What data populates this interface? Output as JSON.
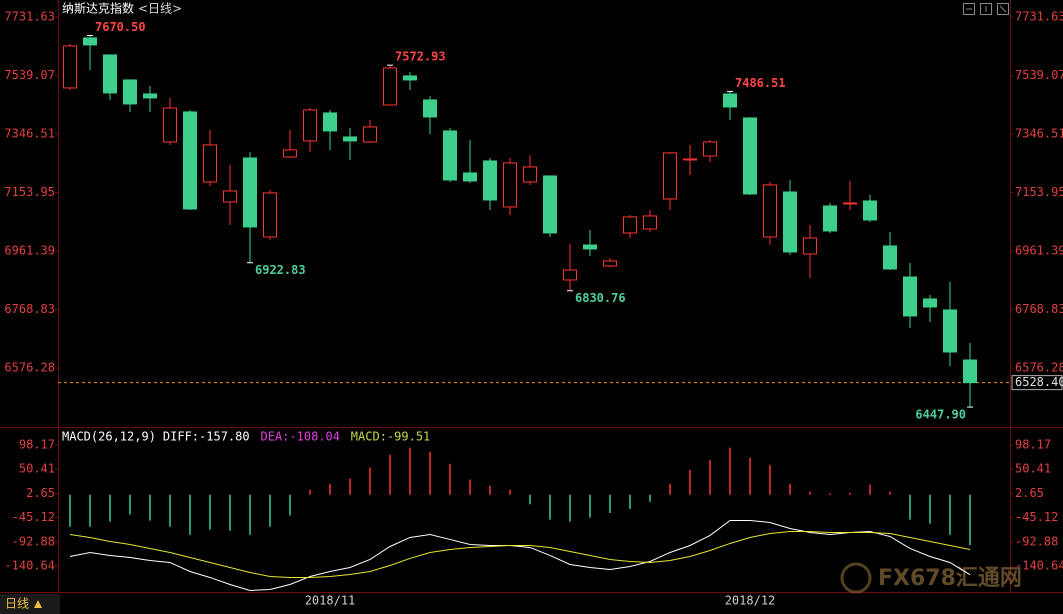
{
  "header": {
    "title": "纳斯达克指数",
    "period": "<日线>"
  },
  "chart_data": [
    {
      "type": "candlestick",
      "categories": [
        null,
        null,
        null,
        null,
        null,
        null,
        null,
        null,
        null,
        null,
        null,
        null,
        null,
        "2018/11",
        null,
        null,
        null,
        null,
        null,
        null,
        null,
        null,
        null,
        null,
        null,
        null,
        null,
        null,
        null,
        null,
        null,
        null,
        null,
        null,
        "2018/12",
        null,
        null,
        null,
        null,
        null,
        null,
        null,
        null,
        null,
        null,
        null
      ],
      "open": [
        7498.0,
        7662.5,
        7606.6,
        7524.3,
        7478.2,
        7320.3,
        7419.0,
        7188.7,
        7122.8,
        7267.6,
        7007.7,
        7270.9,
        7323.6,
        7415.7,
        7336.7,
        7320.3,
        7442.0,
        7537.5,
        7458.5,
        7356.5,
        7218.3,
        7257.8,
        7106.4,
        7188.7,
        7208.4,
        6866.2,
        6981.3,
        6912.2,
        7020.8,
        7034.0,
        7132.7,
        7261.0,
        7274.2,
        7478.2,
        7399.2,
        7007.7,
        7155.7,
        6951.7,
        7109.7,
        7116.3,
        7126.1,
        6978.1,
        6876.0,
        6803.7,
        6767.5,
        6602.9
      ],
      "high": [
        7642.8,
        7670.5,
        7606.6,
        7524.3,
        7504.5,
        7465.1,
        7425.6,
        7359.8,
        7244.6,
        7287.4,
        7162.3,
        7359.8,
        7432.2,
        7425.6,
        7366.3,
        7392.7,
        7572.93,
        7550.6,
        7471.6,
        7366.3,
        7326.9,
        7267.6,
        7267.6,
        7277.5,
        7208.4,
        6984.6,
        7030.7,
        6938.5,
        7080.1,
        7096.5,
        7287.4,
        7310.4,
        7326.9,
        7486.51,
        7402.5,
        7188.7,
        7195.2,
        7047.2,
        7119.5,
        7191.9,
        7145.9,
        7024.1,
        6922.1,
        6816.8,
        6859.6,
        6658.9
      ],
      "low": [
        7491.4,
        7557.2,
        7458.5,
        7419.0,
        7419.0,
        7310.4,
        7096.5,
        7175.5,
        7047.2,
        6922.83,
        6997.8,
        7267.6,
        7287.4,
        7294.0,
        7261.0,
        7317.0,
        7442.0,
        7491.4,
        7346.6,
        7188.7,
        7185.4,
        7096.5,
        7080.1,
        7178.8,
        7007.7,
        6830.76,
        6945.1,
        6908.9,
        7004.4,
        7024.1,
        7096.5,
        7211.7,
        7254.5,
        7392.7,
        7145.9,
        6981.3,
        6948.4,
        6872.7,
        7020.8,
        7096.5,
        7057.0,
        6899.1,
        6708.2,
        6728.0,
        6583.2,
        6447.9
      ],
      "close": [
        7636.2,
        7639.5,
        7481.5,
        7445.3,
        7465.1,
        7432.2,
        7099.8,
        7310.4,
        7159.0,
        7040.6,
        7152.5,
        7294.0,
        7425.6,
        7356.5,
        7323.6,
        7369.6,
        7563.8,
        7524.3,
        7402.5,
        7195.2,
        7191.9,
        7129.4,
        7251.2,
        7238.0,
        7020.8,
        6899.1,
        6968.2,
        6928.7,
        7073.5,
        7076.8,
        7284.1,
        7264.3,
        7320.3,
        7435.4,
        7149.2,
        7178.8,
        6958.3,
        7004.4,
        7027.4,
        7119.5,
        7063.6,
        6902.4,
        6747.7,
        6777.3,
        6629.2,
        6528.4
      ],
      "high_labels": [
        null,
        "7670.50",
        null,
        null,
        null,
        null,
        null,
        null,
        null,
        null,
        null,
        null,
        null,
        null,
        null,
        null,
        "7572.93",
        null,
        null,
        null,
        null,
        null,
        null,
        null,
        null,
        null,
        null,
        null,
        null,
        null,
        null,
        null,
        null,
        "7486.51",
        null,
        null,
        null,
        null,
        null,
        null,
        null,
        null,
        null,
        null,
        null,
        null
      ],
      "low_labels": [
        null,
        null,
        null,
        null,
        null,
        null,
        null,
        null,
        null,
        "6922.83",
        null,
        null,
        null,
        null,
        null,
        null,
        null,
        null,
        null,
        null,
        null,
        null,
        null,
        null,
        null,
        "6830.76",
        null,
        null,
        null,
        null,
        null,
        null,
        null,
        null,
        null,
        null,
        null,
        null,
        null,
        null,
        null,
        null,
        null,
        null,
        null,
        "6447.90"
      ],
      "up_color": "#ff3232",
      "down_color": "#3dd08c",
      "high_label_color": "#ff4545",
      "low_label_color": "#4fd09a",
      "ylim": [
        6389,
        7761
      ],
      "yticks": [
        7731.63,
        7539.07,
        7346.51,
        7153.95,
        6961.39,
        6768.83,
        6576.28
      ],
      "last_price": {
        "value": 6528.4,
        "label": "6528.40"
      },
      "last_price_color": "#ff8c1a"
    },
    {
      "type": "macd",
      "title": "MACD(26,12,9)",
      "ylim": [
        -191.9,
        127.8
      ],
      "yticks": [
        98.17,
        50.41,
        2.65,
        -45.12,
        -92.88,
        -140.64
      ],
      "series": [
        {
          "name": "DIFF:-157.80",
          "color": "#ffffff",
          "legend_color": "#ffffff",
          "values": [
            -121.8,
            -113.9,
            -119.8,
            -123.8,
            -129.7,
            -133.6,
            -151.4,
            -163.2,
            -177.1,
            -188.9,
            -186.9,
            -177.1,
            -161.3,
            -151.4,
            -143.5,
            -127.7,
            -102.1,
            -84.3,
            -78.4,
            -88.2,
            -98.1,
            -100.1,
            -100.1,
            -104.0,
            -119.8,
            -137.6,
            -143.5,
            -147.5,
            -141.5,
            -131.7,
            -113.9,
            -100.1,
            -80.3,
            -50.7,
            -50.7,
            -54.7,
            -66.5,
            -74.4,
            -78.4,
            -74.4,
            -72.4,
            -82.3,
            -106.0,
            -121.8,
            -133.6,
            -157.8
          ]
        },
        {
          "name": "DEA:-108.04",
          "color": "#e6e62e",
          "legend_color": "#e040e0",
          "values": [
            -78.4,
            -84.3,
            -92.2,
            -98.1,
            -106.0,
            -113.9,
            -123.8,
            -133.6,
            -143.5,
            -153.4,
            -161.3,
            -163.2,
            -163.2,
            -161.3,
            -157.3,
            -151.4,
            -139.6,
            -125.7,
            -113.9,
            -108.0,
            -104.0,
            -102.1,
            -100.1,
            -100.1,
            -104.0,
            -111.9,
            -119.8,
            -127.7,
            -131.7,
            -133.6,
            -129.7,
            -121.8,
            -110.0,
            -96.1,
            -84.3,
            -76.4,
            -72.4,
            -72.4,
            -74.4,
            -74.4,
            -74.4,
            -76.4,
            -84.3,
            -92.2,
            -100.1,
            -108.04
          ]
        },
        {
          "name": "MACD:-99.51",
          "color": "#3dd08c",
          "legend_color": "#c8d84a",
          "up_color": "#ff3232",
          "values": [
            -63,
            -63,
            -53,
            -39,
            -51,
            -63,
            -79,
            -69,
            -71,
            -79,
            -63,
            -41,
            10,
            22,
            32,
            54,
            79,
            93,
            85,
            61,
            30,
            18,
            10,
            -19,
            -49,
            -53,
            -45,
            -36,
            -28,
            -14,
            22,
            49,
            69,
            93,
            73,
            59,
            22,
            6,
            3,
            4,
            20,
            6,
            -49,
            -57,
            -79,
            -99.51
          ]
        }
      ]
    }
  ],
  "footer": {
    "period": "日线"
  },
  "watermark": "FX678汇通网"
}
